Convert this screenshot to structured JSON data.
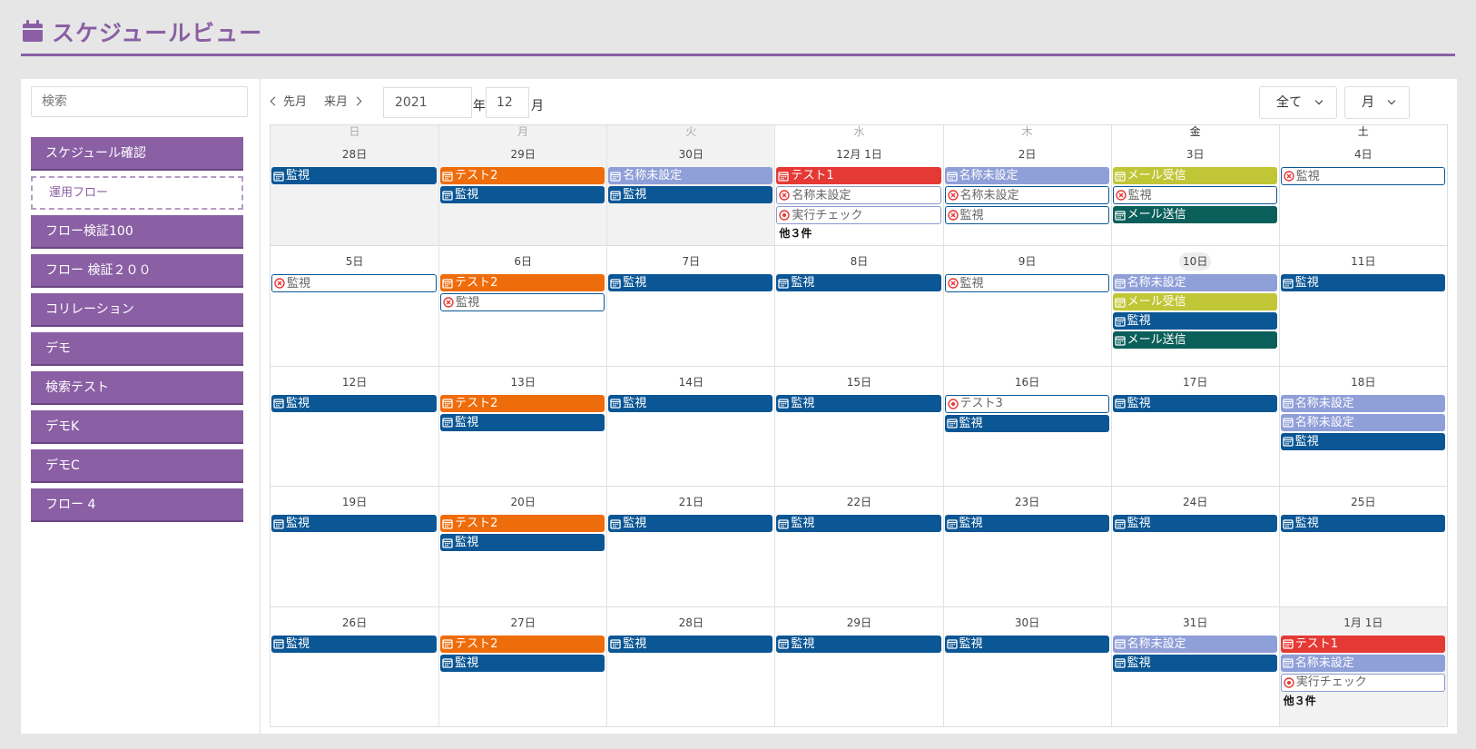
{
  "header": {
    "title": "スケジュールビュー",
    "icon": "calendar-icon",
    "accent": "#8a5fa4"
  },
  "sidebar": {
    "search_placeholder": "検索",
    "items": [
      {
        "label": "スケジュール確認",
        "style": "filled"
      },
      {
        "label": "運用フロー",
        "style": "dashed"
      },
      {
        "label": "フロー検証100",
        "style": "filled"
      },
      {
        "label": "フロー 検証２００",
        "style": "filled"
      },
      {
        "label": "コリレーション",
        "style": "filled"
      },
      {
        "label": "デモ",
        "style": "filled"
      },
      {
        "label": "検索テスト",
        "style": "filled"
      },
      {
        "label": "デモK",
        "style": "filled"
      },
      {
        "label": "デモC",
        "style": "filled"
      },
      {
        "label": "フロー 4",
        "style": "filled"
      }
    ]
  },
  "toolbar": {
    "prev_label": "先月",
    "next_label": "来月",
    "year_value": "2021",
    "year_unit": "年",
    "month_value": "12",
    "month_unit": "月",
    "filter_label": "全て",
    "view_label": "月"
  },
  "calendar": {
    "weekdays": [
      "日",
      "月",
      "火",
      "水",
      "木",
      "金",
      "土"
    ],
    "active_weekdays": [
      5,
      6
    ],
    "colors": {
      "blue": "#0b5695",
      "orange": "#ef6c0a",
      "lav": "#8f9fd8",
      "red": "#e53935",
      "lime": "#c0c635",
      "teal": "#0b5f5a"
    },
    "weeks": [
      [
        {
          "date": "28日",
          "other": true,
          "events": [
            {
              "label": "監視",
              "color": "blue",
              "icon": "calendar"
            }
          ]
        },
        {
          "date": "29日",
          "other": true,
          "events": [
            {
              "label": "テスト2",
              "color": "orange",
              "icon": "calendar"
            },
            {
              "label": "監視",
              "color": "blue",
              "icon": "calendar"
            }
          ]
        },
        {
          "date": "30日",
          "other": true,
          "events": [
            {
              "label": "名称未設定",
              "color": "lav",
              "icon": "calendar"
            },
            {
              "label": "監視",
              "color": "blue",
              "icon": "calendar"
            }
          ]
        },
        {
          "date": "12月 1日",
          "events": [
            {
              "label": "テスト1",
              "color": "red",
              "icon": "calendar"
            },
            {
              "label": "名称未設定",
              "color": "outline",
              "icon": "cancel"
            },
            {
              "label": "実行チェック",
              "color": "outline",
              "icon": "record"
            }
          ],
          "more": "他３件"
        },
        {
          "date": "2日",
          "events": [
            {
              "label": "名称未設定",
              "color": "lav",
              "icon": "calendar"
            },
            {
              "label": "名称未設定",
              "color": "outline-dark",
              "icon": "cancel"
            },
            {
              "label": "監視",
              "color": "outline-dark",
              "icon": "cancel"
            }
          ]
        },
        {
          "date": "3日",
          "events": [
            {
              "label": "メール受信",
              "color": "lime",
              "icon": "calendar"
            },
            {
              "label": "監視",
              "color": "outline-dark",
              "icon": "cancel"
            },
            {
              "label": "メール送信",
              "color": "teal",
              "icon": "calendar"
            }
          ]
        },
        {
          "date": "4日",
          "events": [
            {
              "label": "監視",
              "color": "outline-dark",
              "icon": "cancel"
            }
          ]
        }
      ],
      [
        {
          "date": "5日",
          "events": [
            {
              "label": "監視",
              "color": "outline-dark",
              "icon": "cancel"
            }
          ]
        },
        {
          "date": "6日",
          "events": [
            {
              "label": "テスト2",
              "color": "orange",
              "icon": "calendar"
            },
            {
              "label": "監視",
              "color": "outline-dark",
              "icon": "cancel"
            }
          ]
        },
        {
          "date": "7日",
          "events": [
            {
              "label": "監視",
              "color": "blue",
              "icon": "calendar"
            }
          ]
        },
        {
          "date": "8日",
          "events": [
            {
              "label": "監視",
              "color": "blue",
              "icon": "calendar"
            }
          ]
        },
        {
          "date": "9日",
          "events": [
            {
              "label": "監視",
              "color": "outline-dark",
              "icon": "cancel"
            }
          ]
        },
        {
          "date": "10日",
          "today": true,
          "events": [
            {
              "label": "名称未設定",
              "color": "lav",
              "icon": "calendar"
            },
            {
              "label": "メール受信",
              "color": "lime",
              "icon": "calendar"
            },
            {
              "label": "監視",
              "color": "blue",
              "icon": "calendar"
            },
            {
              "label": "メール送信",
              "color": "teal",
              "icon": "calendar"
            }
          ]
        },
        {
          "date": "11日",
          "events": [
            {
              "label": "監視",
              "color": "blue",
              "icon": "calendar"
            }
          ]
        }
      ],
      [
        {
          "date": "12日",
          "events": [
            {
              "label": "監視",
              "color": "blue",
              "icon": "calendar"
            }
          ]
        },
        {
          "date": "13日",
          "events": [
            {
              "label": "テスト2",
              "color": "orange",
              "icon": "calendar"
            },
            {
              "label": "監視",
              "color": "blue",
              "icon": "calendar"
            }
          ]
        },
        {
          "date": "14日",
          "events": [
            {
              "label": "監視",
              "color": "blue",
              "icon": "calendar"
            }
          ]
        },
        {
          "date": "15日",
          "events": [
            {
              "label": "監視",
              "color": "blue",
              "icon": "calendar"
            }
          ]
        },
        {
          "date": "16日",
          "events": [
            {
              "label": "テスト3",
              "color": "outline-dark",
              "icon": "record"
            },
            {
              "label": "監視",
              "color": "blue",
              "icon": "calendar"
            }
          ]
        },
        {
          "date": "17日",
          "events": [
            {
              "label": "監視",
              "color": "blue",
              "icon": "calendar"
            }
          ]
        },
        {
          "date": "18日",
          "events": [
            {
              "label": "名称未設定",
              "color": "lav",
              "icon": "calendar"
            },
            {
              "label": "名称未設定",
              "color": "lav",
              "icon": "calendar"
            },
            {
              "label": "監視",
              "color": "blue",
              "icon": "calendar"
            }
          ]
        }
      ],
      [
        {
          "date": "19日",
          "events": [
            {
              "label": "監視",
              "color": "blue",
              "icon": "calendar"
            }
          ]
        },
        {
          "date": "20日",
          "events": [
            {
              "label": "テスト2",
              "color": "orange",
              "icon": "calendar"
            },
            {
              "label": "監視",
              "color": "blue",
              "icon": "calendar"
            }
          ]
        },
        {
          "date": "21日",
          "events": [
            {
              "label": "監視",
              "color": "blue",
              "icon": "calendar"
            }
          ]
        },
        {
          "date": "22日",
          "events": [
            {
              "label": "監視",
              "color": "blue",
              "icon": "calendar"
            }
          ]
        },
        {
          "date": "23日",
          "events": [
            {
              "label": "監視",
              "color": "blue",
              "icon": "calendar"
            }
          ]
        },
        {
          "date": "24日",
          "events": [
            {
              "label": "監視",
              "color": "blue",
              "icon": "calendar"
            }
          ]
        },
        {
          "date": "25日",
          "events": [
            {
              "label": "監視",
              "color": "blue",
              "icon": "calendar"
            }
          ]
        }
      ],
      [
        {
          "date": "26日",
          "events": [
            {
              "label": "監視",
              "color": "blue",
              "icon": "calendar"
            }
          ]
        },
        {
          "date": "27日",
          "events": [
            {
              "label": "テスト2",
              "color": "orange",
              "icon": "calendar"
            },
            {
              "label": "監視",
              "color": "blue",
              "icon": "calendar"
            }
          ]
        },
        {
          "date": "28日",
          "events": [
            {
              "label": "監視",
              "color": "blue",
              "icon": "calendar"
            }
          ]
        },
        {
          "date": "29日",
          "events": [
            {
              "label": "監視",
              "color": "blue",
              "icon": "calendar"
            }
          ]
        },
        {
          "date": "30日",
          "events": [
            {
              "label": "監視",
              "color": "blue",
              "icon": "calendar"
            }
          ]
        },
        {
          "date": "31日",
          "events": [
            {
              "label": "名称未設定",
              "color": "lav",
              "icon": "calendar"
            },
            {
              "label": "監視",
              "color": "blue",
              "icon": "calendar"
            }
          ]
        },
        {
          "date": "1月 1日",
          "other": true,
          "events": [
            {
              "label": "テスト1",
              "color": "red",
              "icon": "calendar"
            },
            {
              "label": "名称未設定",
              "color": "lav",
              "icon": "calendar"
            },
            {
              "label": "実行チェック",
              "color": "outline",
              "icon": "record"
            }
          ],
          "more": "他３件"
        }
      ]
    ]
  }
}
